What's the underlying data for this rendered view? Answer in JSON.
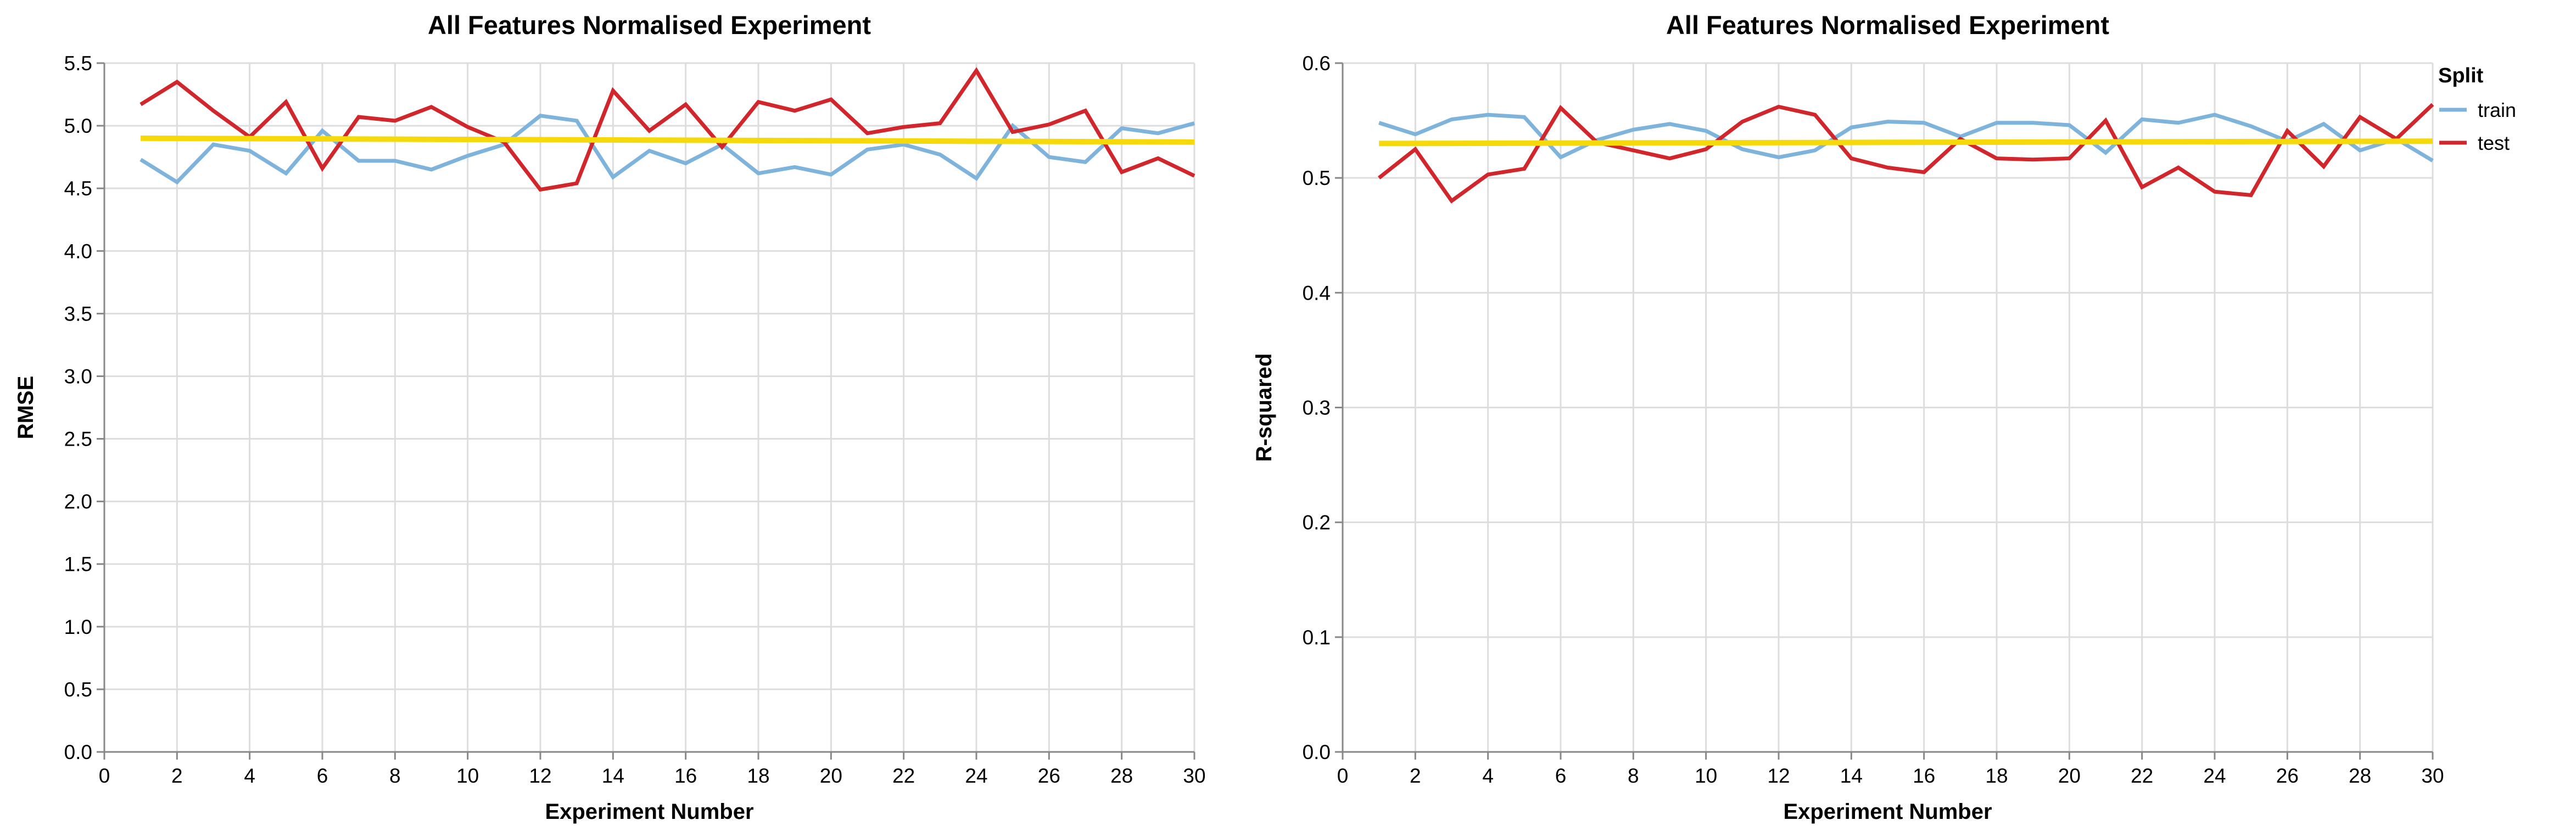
{
  "chart_data": [
    {
      "type": "line",
      "title": "All Features Normalised Experiment",
      "xlabel": "Experiment Number",
      "ylabel": "RMSE",
      "xlim": [
        0,
        30
      ],
      "ylim": [
        0,
        5.5
      ],
      "xticks": [
        0,
        2,
        4,
        6,
        8,
        10,
        12,
        14,
        16,
        18,
        20,
        22,
        24,
        26,
        28,
        30
      ],
      "yticks": [
        "0.0",
        "0.5",
        "1.0",
        "1.5",
        "2.0",
        "2.5",
        "3.0",
        "3.5",
        "4.0",
        "4.5",
        "5.0",
        "5.5"
      ],
      "grid": true,
      "x": [
        1,
        2,
        3,
        4,
        5,
        6,
        7,
        8,
        9,
        10,
        11,
        12,
        13,
        14,
        15,
        16,
        17,
        18,
        19,
        20,
        21,
        22,
        23,
        24,
        25,
        26,
        27,
        28,
        29,
        30
      ],
      "series": [
        {
          "name": "train",
          "color": "#7eb4dc",
          "values": [
            4.73,
            4.55,
            4.85,
            4.8,
            4.62,
            4.96,
            4.72,
            4.72,
            4.65,
            4.76,
            4.85,
            5.08,
            5.04,
            4.59,
            4.8,
            4.7,
            4.85,
            4.62,
            4.67,
            4.61,
            4.81,
            4.85,
            4.77,
            4.58,
            5.0,
            4.75,
            4.71,
            4.98,
            4.94,
            5.02
          ]
        },
        {
          "name": "test",
          "color": "#d1262b",
          "values": [
            5.17,
            5.35,
            5.12,
            4.91,
            5.19,
            4.66,
            5.07,
            5.04,
            5.15,
            4.99,
            4.87,
            4.49,
            4.54,
            5.28,
            4.96,
            5.17,
            4.83,
            5.19,
            5.12,
            5.21,
            4.94,
            4.99,
            5.02,
            5.44,
            4.95,
            5.01,
            5.12,
            4.63,
            4.74,
            4.6
          ]
        }
      ],
      "trend": {
        "color": "#f5d90a",
        "start": [
          1,
          4.9
        ],
        "end": [
          30,
          4.87
        ]
      }
    },
    {
      "type": "line",
      "title": "All Features Normalised Experiment",
      "xlabel": "Experiment Number",
      "ylabel": "R-squared",
      "xlim": [
        0,
        30
      ],
      "ylim": [
        0,
        0.6
      ],
      "xticks": [
        0,
        2,
        4,
        6,
        8,
        10,
        12,
        14,
        16,
        18,
        20,
        22,
        24,
        26,
        28,
        30
      ],
      "yticks": [
        "0.0",
        "0.1",
        "0.2",
        "0.3",
        "0.4",
        "0.5",
        "0.6"
      ],
      "grid": true,
      "x": [
        1,
        2,
        3,
        4,
        5,
        6,
        7,
        8,
        9,
        10,
        11,
        12,
        13,
        14,
        15,
        16,
        17,
        18,
        19,
        20,
        21,
        22,
        23,
        24,
        25,
        26,
        27,
        28,
        29,
        30
      ],
      "series": [
        {
          "name": "train",
          "color": "#7eb4dc",
          "values": [
            0.548,
            0.538,
            0.551,
            0.555,
            0.553,
            0.518,
            0.533,
            0.542,
            0.547,
            0.541,
            0.525,
            0.518,
            0.524,
            0.544,
            0.549,
            0.548,
            0.536,
            0.548,
            0.548,
            0.546,
            0.522,
            0.551,
            0.548,
            0.555,
            0.545,
            0.532,
            0.547,
            0.524,
            0.534,
            0.515
          ]
        },
        {
          "name": "test",
          "color": "#d1262b",
          "values": [
            0.5,
            0.525,
            0.48,
            0.503,
            0.508,
            0.561,
            0.531,
            0.524,
            0.517,
            0.525,
            0.549,
            0.562,
            0.555,
            0.517,
            0.509,
            0.505,
            0.534,
            0.517,
            0.516,
            0.517,
            0.55,
            0.492,
            0.509,
            0.488,
            0.485,
            0.541,
            0.51,
            0.553,
            0.534,
            0.564
          ]
        }
      ],
      "trend": {
        "color": "#f5d90a",
        "start": [
          1,
          0.53
        ],
        "end": [
          30,
          0.532
        ]
      }
    }
  ],
  "legend": {
    "title": "Split",
    "placement": "top-right",
    "items": [
      {
        "label": "train",
        "color": "#7eb4dc"
      },
      {
        "label": "test",
        "color": "#d1262b"
      }
    ]
  }
}
